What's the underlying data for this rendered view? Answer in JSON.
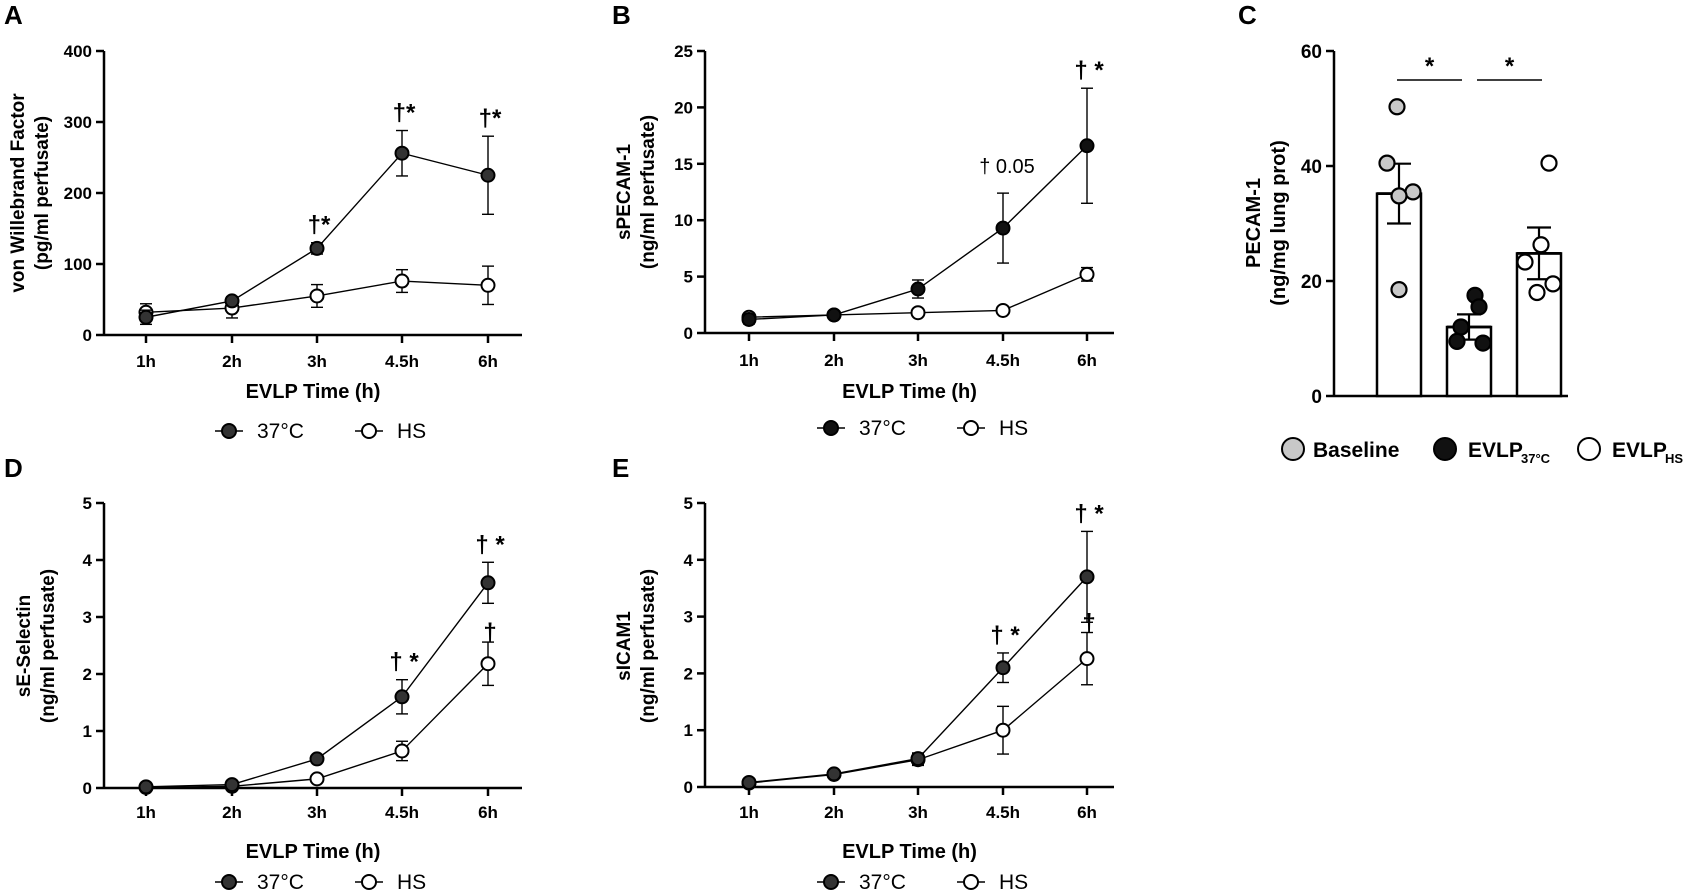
{
  "colors": {
    "c37": "#333333",
    "c37_panelB": "#111111",
    "hs": "#ffffff",
    "baseline": "#c8c8c8",
    "evlp37": "#111111",
    "evlphs": "#ffffff",
    "ink": "#000000"
  },
  "legend": {
    "c37_label": "37°C",
    "hs_label": "HS"
  },
  "legendC": {
    "baseline": "Baseline",
    "evlp37": "EVLP",
    "evlp37_sub": "37°C",
    "evlphs": "EVLP",
    "evlphs_sub": "HS"
  },
  "chart_data": [
    {
      "panel": "A",
      "type": "line",
      "categories": [
        "1h",
        "2h",
        "3h",
        "4.5h",
        "6h"
      ],
      "xlabel": "EVLP Time (h)",
      "ylabel": [
        "von Willebrand Factor",
        "(pg/ml perfusate)"
      ],
      "ylim": [
        0,
        400
      ],
      "yticks": [
        0,
        100,
        200,
        300,
        400
      ],
      "series": [
        {
          "name": "37°C",
          "values": [
            25,
            48,
            122,
            256,
            225
          ],
          "errors": [
            10,
            6,
            8,
            32,
            55
          ]
        },
        {
          "name": "HS",
          "values": [
            32,
            38,
            55,
            76,
            70
          ],
          "errors": [
            12,
            14,
            16,
            16,
            27
          ]
        }
      ],
      "annotations": [
        {
          "index": 2,
          "text": "†*"
        },
        {
          "index": 3,
          "text": "†*"
        },
        {
          "index": 4,
          "text": "†*"
        }
      ]
    },
    {
      "panel": "B",
      "type": "line",
      "categories": [
        "1h",
        "2h",
        "3h",
        "4.5h",
        "6h"
      ],
      "xlabel": "EVLP Time (h)",
      "ylabel": [
        "sPECAM-1",
        "(ng/ml perfusate)"
      ],
      "ylim": [
        0,
        25
      ],
      "yticks": [
        0,
        5,
        10,
        15,
        20,
        25
      ],
      "series": [
        {
          "name": "37°C",
          "values": [
            1.2,
            1.6,
            3.9,
            9.3,
            16.6
          ],
          "errors": [
            0.4,
            0.3,
            0.8,
            3.1,
            5.1
          ]
        },
        {
          "name": "HS",
          "values": [
            1.4,
            1.6,
            1.8,
            2.0,
            5.2
          ],
          "errors": [
            0.2,
            0.2,
            0.2,
            0.3,
            0.6
          ]
        }
      ],
      "annotations": [
        {
          "index": 3,
          "text": "† 0.05"
        },
        {
          "index": 4,
          "text": "† *"
        }
      ]
    },
    {
      "panel": "C",
      "type": "bar",
      "categories": [
        "Baseline",
        "EVLP37°C",
        "EVLPHS"
      ],
      "ylabel": [
        "PECAM-1",
        "(ng/mg lung prot)"
      ],
      "ylim": [
        0,
        60
      ],
      "yticks": [
        0,
        20,
        40,
        60
      ],
      "values": [
        35.2,
        12.0,
        24.8
      ],
      "errors": [
        5.2,
        2.2,
        4.5
      ],
      "points": [
        [
          50.3,
          40.5,
          35.5,
          34.8,
          18.5
        ],
        [
          17.5,
          15.5,
          12.0,
          9.5,
          9.2
        ],
        [
          40.5,
          26.3,
          23.3,
          19.5,
          18.0
        ]
      ],
      "significance": [
        {
          "from": 0,
          "to": 1,
          "text": "*"
        },
        {
          "from": 1,
          "to": 2,
          "text": "*"
        }
      ]
    },
    {
      "panel": "D",
      "type": "line",
      "categories": [
        "1h",
        "2h",
        "3h",
        "4.5h",
        "6h"
      ],
      "xlabel": "EVLP Time (h)",
      "ylabel": [
        "sE-Selectin",
        "(ng/ml perfusate)"
      ],
      "ylim": [
        0,
        5
      ],
      "yticks": [
        0,
        1,
        2,
        3,
        4,
        5
      ],
      "series": [
        {
          "name": "37°C",
          "values": [
            0.02,
            0.06,
            0.51,
            1.6,
            3.6
          ],
          "errors": [
            0.01,
            0.02,
            0.05,
            0.3,
            0.36
          ]
        },
        {
          "name": "HS",
          "values": [
            0.01,
            0.03,
            0.16,
            0.65,
            2.18
          ],
          "errors": [
            0.01,
            0.01,
            0.04,
            0.17,
            0.38
          ]
        }
      ],
      "annotations": [
        {
          "index": 3,
          "text": "† *"
        },
        {
          "index": 4,
          "text": "† *"
        },
        {
          "index": 4,
          "text": "†",
          "series": "HS"
        }
      ]
    },
    {
      "panel": "E",
      "type": "line",
      "categories": [
        "1h",
        "2h",
        "3h",
        "4.5h",
        "6h"
      ],
      "xlabel": "EVLP Time (h)",
      "ylabel": [
        "sICAM1",
        "(ng/ml perfusate)"
      ],
      "ylim": [
        0,
        5
      ],
      "yticks": [
        0,
        1,
        2,
        3,
        4,
        5
      ],
      "series": [
        {
          "name": "37°C",
          "values": [
            0.08,
            0.23,
            0.5,
            2.1,
            3.7
          ],
          "errors": [
            0.03,
            0.05,
            0.1,
            0.26,
            0.8
          ]
        },
        {
          "name": "HS",
          "values": [
            0.07,
            0.22,
            0.48,
            1.0,
            2.26
          ],
          "errors": [
            0.03,
            0.05,
            0.1,
            0.42,
            0.46
          ]
        }
      ],
      "annotations": [
        {
          "index": 3,
          "text": "† *"
        },
        {
          "index": 4,
          "text": "† *"
        },
        {
          "index": 4,
          "text": "†",
          "series": "HS"
        }
      ]
    }
  ]
}
